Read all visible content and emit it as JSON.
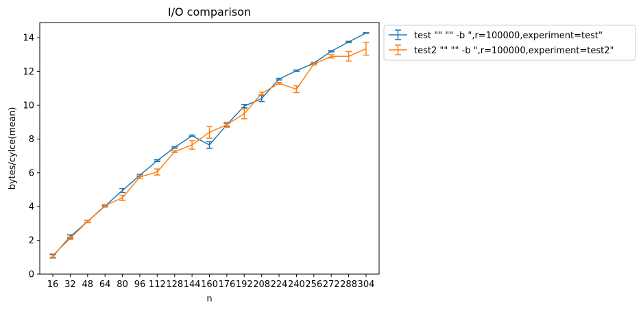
{
  "chart_data": {
    "type": "line",
    "title": "I/O comparison",
    "xlabel": "n",
    "ylabel": "bytes/cylce(mean)",
    "x": [
      16,
      32,
      48,
      64,
      80,
      96,
      112,
      128,
      144,
      160,
      176,
      192,
      208,
      224,
      240,
      256,
      272,
      288,
      304
    ],
    "xlim": [
      4,
      316
    ],
    "ylim": [
      0,
      14.9
    ],
    "yticks": [
      0,
      2,
      4,
      6,
      8,
      10,
      12,
      14
    ],
    "grid": false,
    "legend_position": "outside top-right",
    "series": [
      {
        "name": "test \"\"  \"\" -b \",r=100000,experiment=test\"",
        "color": "#1f77b4",
        "values": [
          1.05,
          2.22,
          3.12,
          4.03,
          4.95,
          5.85,
          6.72,
          7.5,
          8.2,
          7.65,
          8.85,
          9.95,
          10.4,
          11.55,
          12.05,
          12.5,
          13.2,
          13.75,
          14.28
        ],
        "errors": [
          0.1,
          0.1,
          0.06,
          0.05,
          0.12,
          0.06,
          0.05,
          0.04,
          0.04,
          0.2,
          0.08,
          0.1,
          0.18,
          0.05,
          0.04,
          0.04,
          0.04,
          0.04,
          0.02
        ]
      },
      {
        "name": "test2 \"\"  \"\" -b \",r=100000,experiment=test2\"",
        "color": "#ff7f0e",
        "values": [
          1.1,
          2.12,
          3.12,
          4.06,
          4.52,
          5.75,
          6.05,
          7.25,
          7.65,
          8.4,
          8.85,
          9.5,
          10.7,
          11.3,
          10.95,
          12.45,
          12.9,
          12.9,
          13.35
        ],
        "errors": [
          0.1,
          0.06,
          0.06,
          0.05,
          0.15,
          0.08,
          0.18,
          0.05,
          0.25,
          0.35,
          0.15,
          0.3,
          0.08,
          0.05,
          0.2,
          0.06,
          0.1,
          0.28,
          0.38
        ]
      }
    ]
  }
}
